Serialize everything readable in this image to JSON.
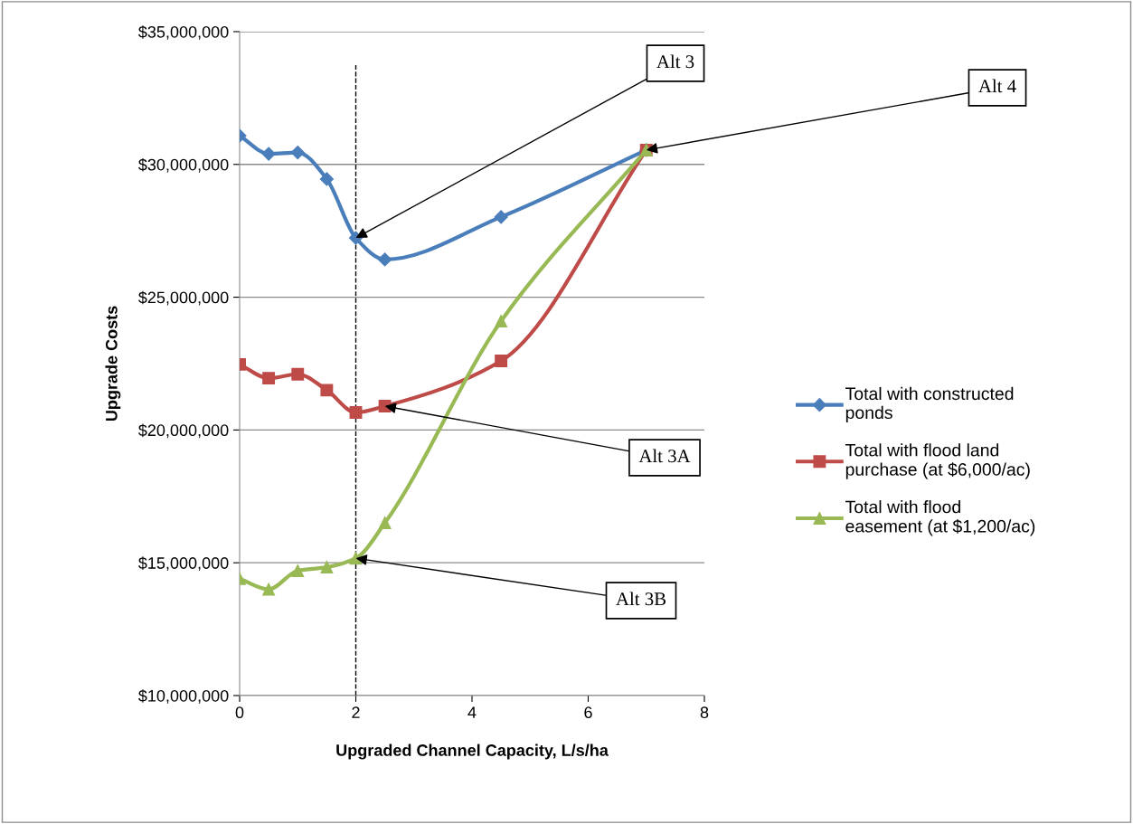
{
  "chart_data": {
    "type": "line",
    "xlabel": "Upgraded Channel Capacity, L/s/ha",
    "ylabel": "Upgrade Costs",
    "x": [
      0,
      0.5,
      1,
      1.5,
      2,
      2.5,
      4.5,
      7
    ],
    "series": [
      {
        "name": "Total with constructed ponds",
        "color": "#4a7ebb",
        "marker": "diamond",
        "values": [
          31080000,
          30400000,
          30450000,
          29450000,
          27230000,
          26420000,
          28020000,
          30540000
        ]
      },
      {
        "name": "Total with flood land purchase (at $6,000/ac)",
        "color": "#be4b48",
        "marker": "square",
        "values": [
          22470000,
          21950000,
          22100000,
          21500000,
          20660000,
          20900000,
          22600000,
          30540000
        ]
      },
      {
        "name": "Total with flood easement (at $1,200/ac)",
        "color": "#98b954",
        "marker": "triangle",
        "values": [
          14400000,
          14000000,
          14700000,
          14830000,
          15170000,
          16500000,
          24100000,
          30540000
        ]
      }
    ],
    "xlim": [
      0,
      8
    ],
    "xticks": [
      0,
      2,
      4,
      6,
      8
    ],
    "ylim": [
      10000000,
      35000000
    ],
    "yticks": [
      {
        "value": 10000000,
        "label": "$10,000,000"
      },
      {
        "value": 15000000,
        "label": "$15,000,000"
      },
      {
        "value": 20000000,
        "label": "$20,000,000"
      },
      {
        "value": 25000000,
        "label": "$25,000,000"
      },
      {
        "value": 30000000,
        "label": "$30,000,000"
      },
      {
        "value": 35000000,
        "label": "$35,000,000"
      }
    ],
    "ref_lines": [
      {
        "axis": "x",
        "value": 2,
        "color": "#000000",
        "line_style": "dashed"
      }
    ],
    "annotations": [
      {
        "text": "Alt 3",
        "x": 2,
        "y": 27230000
      },
      {
        "text": "Alt 4",
        "x": 7,
        "y": 30540000
      },
      {
        "text": "Alt 3A",
        "x": 2.5,
        "y": 20900000
      },
      {
        "text": "Alt 3B",
        "x": 2,
        "y": 15170000
      }
    ],
    "grid": "y",
    "legend": "right"
  }
}
